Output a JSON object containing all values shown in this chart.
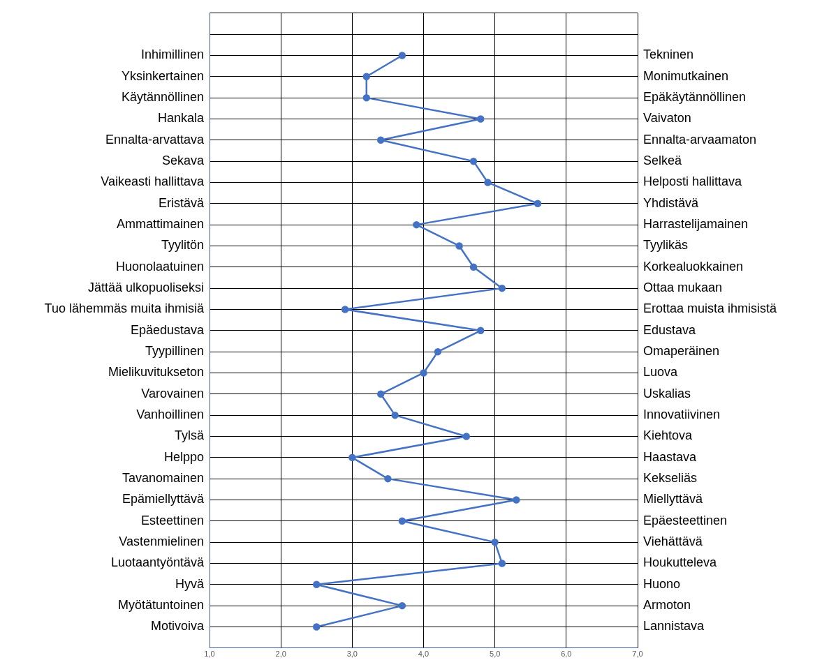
{
  "chart_data": {
    "type": "line",
    "orientation": "horizontal",
    "color": "#4472c4",
    "marker": "circle",
    "grid": true,
    "legend": false,
    "categories": [
      null,
      null,
      "Inhimillinen",
      "Yksinkertainen",
      "Käytännöllinen",
      "Hankala",
      "Ennalta-arvattava",
      "Sekava",
      "Vaikeasti hallittava",
      "Eristävä",
      "Ammattimainen",
      "Tyylitön",
      "Huonolaatuinen",
      "Jättää ulkopuoliseksi",
      "Tuo lähemmäs muita ihmisiä",
      "Epäedustava",
      "Tyypillinen",
      "Mielikuvitukseton",
      "Varovainen",
      "Vanhoillinen",
      "Tylsä",
      "Helppo",
      "Tavanomainen",
      "Epämiellyttävä",
      "Esteettinen",
      "Vastenmielinen",
      "Luotaantyöntävä",
      "Hyvä",
      "Myötätuntoinen",
      "Motivoiva",
      null
    ],
    "values": [
      null,
      null,
      3.7,
      3.2,
      3.2,
      4.8,
      3.4,
      4.7,
      4.9,
      5.6,
      3.9,
      4.5,
      4.7,
      5.1,
      2.9,
      4.8,
      4.2,
      4.0,
      3.4,
      3.6,
      4.6,
      3.0,
      3.5,
      5.3,
      3.7,
      5.0,
      5.1,
      2.5,
      3.7,
      2.5,
      null
    ],
    "xlim": [
      1,
      7
    ],
    "xticks": [
      {
        "value": 1,
        "label": "1,0"
      },
      {
        "value": 2,
        "label": "2,0"
      },
      {
        "value": 3,
        "label": "3,0"
      },
      {
        "value": 4,
        "label": "4,0"
      },
      {
        "value": 5,
        "label": "5,0"
      },
      {
        "value": 6,
        "label": "6,0"
      },
      {
        "value": 7,
        "label": "7,0"
      }
    ],
    "annotations": [
      "Tekninen",
      "Monimutkainen",
      "Epäkäytännöllinen",
      "Vaivaton",
      "Ennalta-arvaamaton",
      "Selkeä",
      "Helposti hallittava",
      "Yhdistävä",
      "Harrastelijamainen",
      "Tyylikäs",
      "Korkealuokkainen",
      "Ottaa mukaan",
      "Erottaa muista ihmisistä",
      "Edustava",
      "Omaperäinen",
      "Luova",
      "Uskalias",
      "Innovatiivinen",
      "Kiehtova",
      "Haastava",
      "Kekseliäs",
      "Miellyttävä",
      "Epäesteettinen",
      "Viehättävä",
      "Houkutteleva",
      "Huono",
      "Armoton",
      "Lannistava"
    ]
  }
}
